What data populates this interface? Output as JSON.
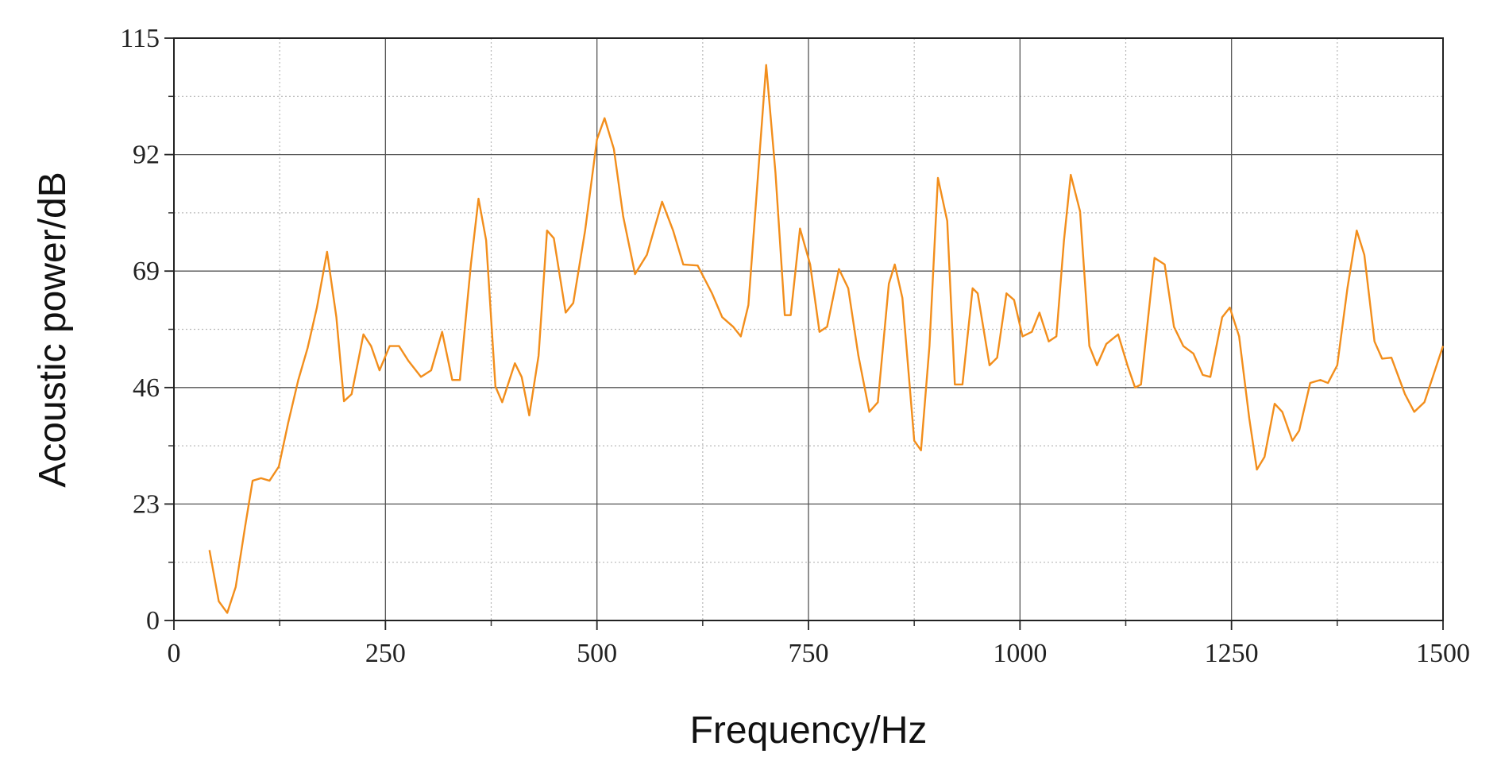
{
  "chart_data": {
    "type": "line",
    "x_label": "Frequency/Hz",
    "y_label": "Acoustic power/dB",
    "xlim": [
      0,
      1500
    ],
    "ylim": [
      0,
      115
    ],
    "xticks": [
      0,
      250,
      500,
      750,
      1000,
      1250,
      1500
    ],
    "yticks": [
      0,
      23,
      46,
      69,
      92,
      115
    ],
    "grid": true,
    "minor_grid": true,
    "series": [
      {
        "name": "Acoustic power",
        "color": "#f28e1c",
        "x": [
          42,
          53,
          63,
          73,
          84,
          93,
          103,
          113,
          124,
          135,
          147,
          158,
          169,
          181,
          192,
          201,
          210,
          224,
          233,
          243,
          255,
          266,
          277,
          292,
          304,
          317,
          329,
          338,
          351,
          360,
          369,
          380,
          388,
          403,
          411,
          420,
          431,
          441,
          449,
          463,
          472,
          486,
          500,
          509,
          520,
          531,
          545,
          559,
          577,
          590,
          602,
          619,
          636,
          648,
          661,
          670,
          679,
          700,
          711,
          722,
          729,
          740,
          752,
          763,
          772,
          786,
          797,
          809,
          822,
          832,
          845,
          852,
          861,
          875,
          883,
          893,
          903,
          914,
          923,
          932,
          944,
          950,
          964,
          973,
          984,
          993,
          1003,
          1014,
          1023,
          1034,
          1043,
          1052,
          1060,
          1071,
          1082,
          1091,
          1102,
          1116,
          1127,
          1136,
          1143,
          1159,
          1171,
          1182,
          1193,
          1205,
          1216,
          1225,
          1239,
          1248,
          1259,
          1271,
          1280,
          1289,
          1301,
          1310,
          1322,
          1330,
          1343,
          1355,
          1364,
          1375,
          1387,
          1398,
          1407,
          1419,
          1428,
          1439,
          1455,
          1466,
          1478,
          1500
        ],
        "values": [
          13.9,
          3.8,
          1.5,
          6.6,
          18.4,
          27.6,
          28.1,
          27.6,
          30.4,
          39,
          47.5,
          53.8,
          61.8,
          72.8,
          59.9,
          43.3,
          44.7,
          56.5,
          54.2,
          49.4,
          54.2,
          54.2,
          51.3,
          48.1,
          49.4,
          57,
          47.5,
          47.5,
          70.3,
          83.3,
          75.1,
          46.2,
          43.1,
          50.8,
          48.1,
          40.5,
          52.3,
          77,
          75.5,
          60.8,
          62.7,
          77,
          95,
          99.2,
          93.1,
          79.8,
          68.4,
          72.2,
          82.7,
          77,
          70.3,
          70.1,
          64.6,
          59.9,
          58,
          56.1,
          62.3,
          109.7,
          88.4,
          60.3,
          60.3,
          77.4,
          70.3,
          57,
          58,
          69.4,
          65.6,
          52.3,
          41.2,
          43.1,
          66.5,
          70.3,
          63.7,
          35.5,
          33.6,
          54.2,
          87.4,
          78.9,
          46.6,
          46.6,
          65.6,
          64.6,
          50.4,
          51.9,
          64.6,
          63.3,
          56.1,
          57,
          60.8,
          55.1,
          56.1,
          75.1,
          88,
          80.8,
          54.2,
          50.4,
          54.6,
          56.5,
          50.4,
          46,
          46.6,
          71.6,
          70.3,
          58,
          54.2,
          52.7,
          48.5,
          48.1,
          59.9,
          61.8,
          56.1,
          39.9,
          29.8,
          32.3,
          42.8,
          41.2,
          35.5,
          37.5,
          46.9,
          47.5,
          46.9,
          50.4,
          65.6,
          77,
          72.2,
          55.1,
          51.7,
          51.9,
          44.7,
          41.2,
          43.1,
          54.2
        ]
      }
    ]
  }
}
